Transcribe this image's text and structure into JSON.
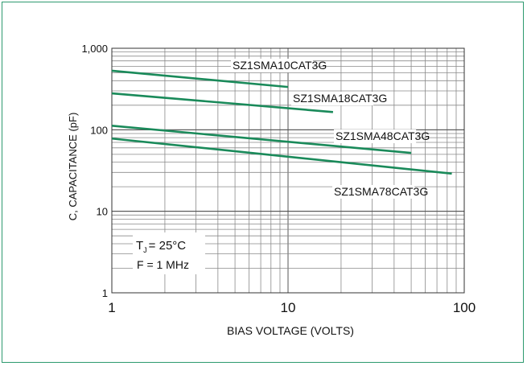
{
  "chart_data": {
    "type": "line",
    "title": "",
    "xlabel": "BIAS VOLTAGE (VOLTS)",
    "ylabel": "C, CAPACITANCE (pF)",
    "x_scale": "log",
    "y_scale": "log",
    "xlim": [
      1,
      100
    ],
    "ylim": [
      1,
      1000
    ],
    "grid": true,
    "x_ticks": [
      1,
      10,
      100
    ],
    "x_tick_labels": [
      "1",
      "10",
      "100"
    ],
    "y_ticks": [
      1,
      10,
      100,
      1000
    ],
    "y_tick_labels": [
      "1",
      "10",
      "100",
      "1,000"
    ],
    "line_color": "#1a8a5a",
    "series": [
      {
        "name": "SZ1SMA10CAT3G",
        "x": [
          1,
          10
        ],
        "y": [
          530,
          335
        ]
      },
      {
        "name": "SZ1SMA18CAT3G",
        "x": [
          1,
          18
        ],
        "y": [
          280,
          165
        ]
      },
      {
        "name": "SZ1SMA48CAT3G",
        "x": [
          1,
          50
        ],
        "y": [
          112,
          52
        ]
      },
      {
        "name": "SZ1SMA78CAT3G",
        "x": [
          1,
          85
        ],
        "y": [
          78,
          29
        ]
      }
    ],
    "annotations": {
      "tj_prefix": "T",
      "tj_sub": "J",
      "tj_value": "= 25°C",
      "freq": "F = 1 MHz"
    }
  }
}
